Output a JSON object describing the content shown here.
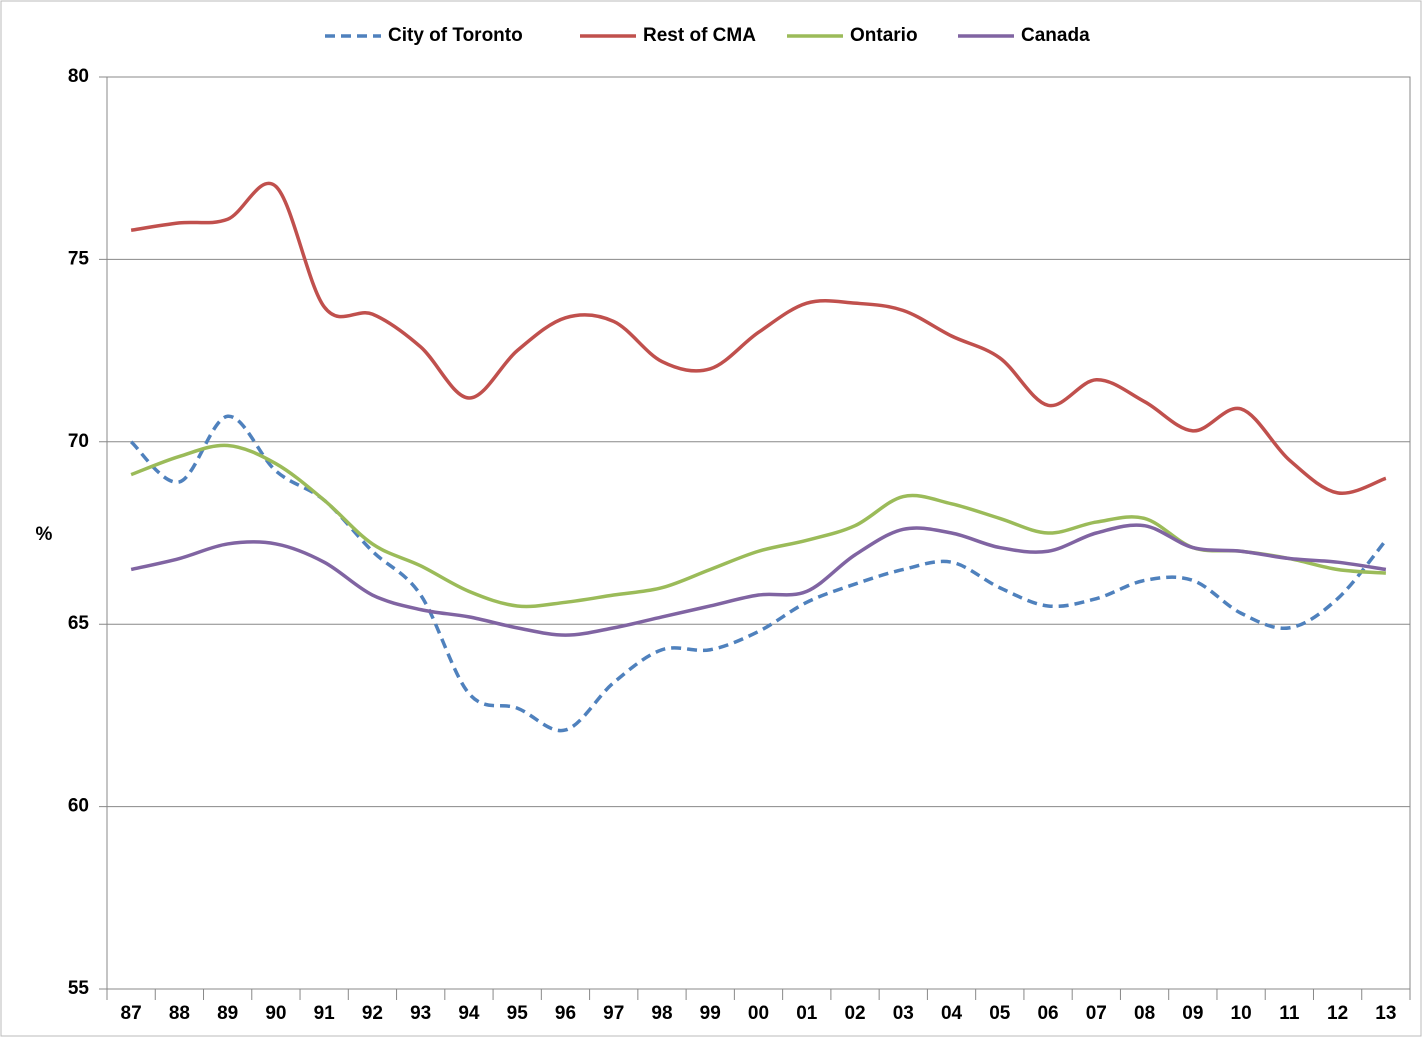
{
  "chart_data": {
    "type": "line",
    "y_label": "%",
    "categories": [
      "87",
      "88",
      "89",
      "90",
      "91",
      "92",
      "93",
      "94",
      "95",
      "96",
      "97",
      "98",
      "99",
      "00",
      "01",
      "02",
      "03",
      "04",
      "05",
      "06",
      "07",
      "08",
      "09",
      "10",
      "11",
      "12",
      "13"
    ],
    "series": [
      {
        "name": "City of Toronto",
        "color": "#4f81bd",
        "dashed": true,
        "values": [
          70.0,
          68.9,
          70.7,
          69.2,
          68.4,
          67.0,
          65.8,
          63.1,
          62.7,
          62.1,
          63.4,
          64.3,
          64.3,
          64.8,
          65.6,
          66.1,
          66.5,
          66.7,
          66.0,
          65.5,
          65.7,
          66.2,
          66.2,
          65.3,
          64.9,
          65.7,
          67.3
        ]
      },
      {
        "name": "Rest of CMA",
        "color": "#c0504d",
        "values": [
          75.8,
          76.0,
          76.1,
          77.0,
          73.7,
          73.5,
          72.6,
          71.2,
          72.5,
          73.4,
          73.3,
          72.2,
          72.0,
          73.0,
          73.8,
          73.8,
          73.6,
          72.9,
          72.3,
          71.0,
          71.7,
          71.1,
          70.3,
          70.9,
          69.5,
          68.6,
          69.0
        ]
      },
      {
        "name": "Ontario",
        "color": "#9bbb59",
        "values": [
          69.1,
          69.6,
          69.9,
          69.4,
          68.4,
          67.2,
          66.6,
          65.9,
          65.5,
          65.6,
          65.8,
          66.0,
          66.5,
          67.0,
          67.3,
          67.7,
          68.5,
          68.3,
          67.9,
          67.5,
          67.8,
          67.9,
          67.1,
          67.0,
          66.8,
          66.5,
          66.4
        ]
      },
      {
        "name": "Canada",
        "color": "#8064a2",
        "values": [
          66.5,
          66.8,
          67.2,
          67.2,
          66.7,
          65.8,
          65.4,
          65.2,
          64.9,
          64.7,
          64.9,
          65.2,
          65.5,
          65.8,
          65.9,
          66.9,
          67.6,
          67.5,
          67.1,
          67.0,
          67.5,
          67.7,
          67.1,
          67.0,
          66.8,
          66.7,
          66.5
        ]
      }
    ],
    "ylim": [
      55,
      80
    ],
    "yticks": [
      55,
      60,
      65,
      70,
      75,
      80
    ],
    "grid": true,
    "legend": "top"
  }
}
